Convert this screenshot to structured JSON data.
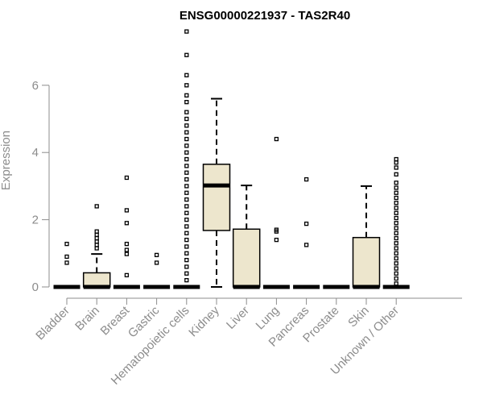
{
  "chart_data": {
    "type": "boxplot",
    "title": "ENSG00000221937 - TAS2R40",
    "ylabel": "Expression",
    "xlabel": "",
    "ylim": [
      0,
      7.6
    ],
    "y_ticks": [
      0,
      2,
      4,
      6
    ],
    "y_tick_labels": [
      "0",
      "2",
      "4",
      "6"
    ],
    "grid": false,
    "colors": {
      "box_fill": "#ede6cd",
      "stroke": "#000000",
      "axis": "#8c8c8c",
      "text_gray": "#8c8c8c"
    },
    "categories": [
      "Bladder",
      "Brain",
      "Breast",
      "Gastric",
      "Hematopoietic cells",
      "Kidney",
      "Liver",
      "Lung",
      "Pancreas",
      "Prostate",
      "Skin",
      "Unknown / Other"
    ],
    "boxes": [
      {
        "category": "Bladder",
        "q1": 0,
        "median": 0,
        "q3": 0,
        "whisker_low": 0,
        "whisker_high": 0,
        "outliers": [
          1.28,
          0.9,
          0.72
        ]
      },
      {
        "category": "Brain",
        "q1": 0,
        "median": 0,
        "q3": 0.42,
        "whisker_low": 0,
        "whisker_high": 0.98,
        "outliers": [
          1.15,
          1.25,
          1.35,
          1.45,
          1.55,
          1.65,
          2.4
        ]
      },
      {
        "category": "Breast",
        "q1": 0,
        "median": 0,
        "q3": 0,
        "whisker_low": 0,
        "whisker_high": 0,
        "outliers": [
          0.35,
          0.98,
          1.1,
          1.28,
          1.9,
          2.28,
          3.25
        ]
      },
      {
        "category": "Gastric",
        "q1": 0,
        "median": 0,
        "q3": 0,
        "whisker_low": 0,
        "whisker_high": 0,
        "outliers": [
          0.72,
          0.95
        ]
      },
      {
        "category": "Hematopoietic cells",
        "q1": 0,
        "median": 0,
        "q3": 0,
        "whisker_low": 0,
        "whisker_high": 0,
        "outliers": [
          7.6,
          6.9,
          6.3,
          6.0,
          5.7,
          5.5,
          5.2,
          5.0,
          4.8,
          4.6,
          4.4,
          4.2,
          4.0,
          3.8,
          3.6,
          3.4,
          3.2,
          3.0,
          2.8,
          2.6,
          2.4,
          2.2,
          2.0,
          1.8,
          1.6,
          1.4,
          1.2,
          1.0,
          0.8,
          0.6,
          0.4,
          0.2
        ]
      },
      {
        "category": "Kidney",
        "q1": 1.68,
        "median": 3.02,
        "q3": 3.65,
        "whisker_low": 0,
        "whisker_high": 5.6,
        "outliers": []
      },
      {
        "category": "Liver",
        "q1": 0,
        "median": 0,
        "q3": 1.72,
        "whisker_low": 0,
        "whisker_high": 3.02,
        "outliers": []
      },
      {
        "category": "Lung",
        "q1": 0,
        "median": 0,
        "q3": 0,
        "whisker_low": 0,
        "whisker_high": 0,
        "outliers": [
          4.4,
          1.7,
          1.65,
          1.4
        ]
      },
      {
        "category": "Pancreas",
        "q1": 0,
        "median": 0,
        "q3": 0,
        "whisker_low": 0,
        "whisker_high": 0,
        "outliers": [
          3.2,
          1.88,
          1.25
        ]
      },
      {
        "category": "Prostate",
        "q1": 0,
        "median": 0,
        "q3": 0,
        "whisker_low": 0,
        "whisker_high": 0,
        "outliers": []
      },
      {
        "category": "Skin",
        "q1": 0,
        "median": 0,
        "q3": 1.47,
        "whisker_low": 0,
        "whisker_high": 3.0,
        "outliers": []
      },
      {
        "category": "Unknown / Other",
        "q1": 0,
        "median": 0,
        "q3": 0,
        "whisker_low": 0,
        "whisker_high": 0,
        "outliers": [
          3.8,
          3.7,
          3.55,
          3.35,
          3.1,
          2.95,
          2.8,
          2.65,
          2.5,
          2.35,
          2.2,
          2.05,
          1.9,
          1.75,
          1.6,
          1.45,
          1.3,
          1.15,
          1.0,
          0.85,
          0.7,
          0.55,
          0.4,
          0.25,
          0.1
        ]
      }
    ]
  }
}
